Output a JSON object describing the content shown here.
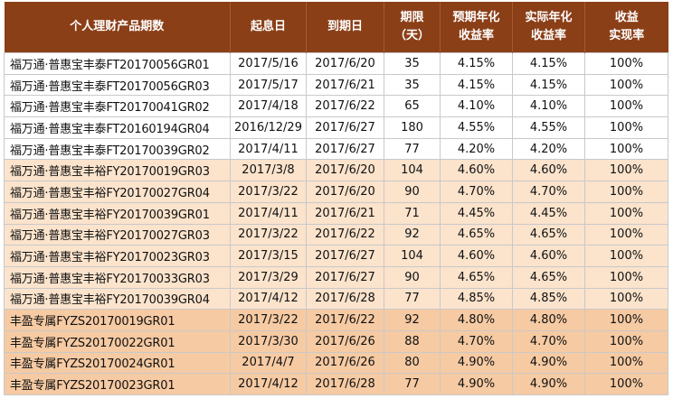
{
  "headers": {
    "product": "个人理财产品期数",
    "start": "起息日",
    "end": "到期日",
    "term": [
      "期限",
      "（天）"
    ],
    "expected": [
      "预期年化",
      "收益率"
    ],
    "actual": [
      "实际年化",
      "收益率"
    ],
    "realization": [
      "收益",
      "实现率"
    ]
  },
  "rows": [
    {
      "group": 0,
      "name": "福万通·普惠宝丰泰FT20170056GR01",
      "start": "2017/5/16",
      "end": "2017/6/20",
      "days": "35",
      "expected": "4.15%",
      "actual": "4.15%",
      "rate": "100%"
    },
    {
      "group": 0,
      "name": "福万通·普惠宝丰泰FT20170056GR03",
      "start": "2017/5/17",
      "end": "2017/6/21",
      "days": "35",
      "expected": "4.15%",
      "actual": "4.15%",
      "rate": "100%"
    },
    {
      "group": 0,
      "name": "福万通·普惠宝丰泰FT20170041GR02",
      "start": "2017/4/18",
      "end": "2017/6/22",
      "days": "65",
      "expected": "4.10%",
      "actual": "4.10%",
      "rate": "100%"
    },
    {
      "group": 0,
      "name": "福万通·普惠宝丰泰FT20160194GR04",
      "start": "2016/12/29",
      "end": "2017/6/27",
      "days": "180",
      "expected": "4.55%",
      "actual": "4.55%",
      "rate": "100%"
    },
    {
      "group": 0,
      "name": "福万通·普惠宝丰泰FT20170039GR02",
      "start": "2017/4/11",
      "end": "2017/6/27",
      "days": "77",
      "expected": "4.20%",
      "actual": "4.20%",
      "rate": "100%"
    },
    {
      "group": 1,
      "name": "福万通·普惠宝丰裕FY20170019GR03",
      "start": "2017/3/8",
      "end": "2017/6/20",
      "days": "104",
      "expected": "4.60%",
      "actual": "4.60%",
      "rate": "100%"
    },
    {
      "group": 1,
      "name": "福万通·普惠宝丰裕FY20170027GR04",
      "start": "2017/3/22",
      "end": "2017/6/20",
      "days": "90",
      "expected": "4.70%",
      "actual": "4.70%",
      "rate": "100%"
    },
    {
      "group": 1,
      "name": "福万通·普惠宝丰裕FY20170039GR01",
      "start": "2017/4/11",
      "end": "2017/6/21",
      "days": "71",
      "expected": "4.45%",
      "actual": "4.45%",
      "rate": "100%"
    },
    {
      "group": 1,
      "name": "福万通·普惠宝丰裕FY20170027GR03",
      "start": "2017/3/22",
      "end": "2017/6/22",
      "days": "92",
      "expected": "4.65%",
      "actual": "4.65%",
      "rate": "100%"
    },
    {
      "group": 1,
      "name": "福万通·普惠宝丰裕FY20170023GR03",
      "start": "2017/3/15",
      "end": "2017/6/27",
      "days": "104",
      "expected": "4.60%",
      "actual": "4.60%",
      "rate": "100%"
    },
    {
      "group": 1,
      "name": "福万通·普惠宝丰裕FY20170033GR03",
      "start": "2017/3/29",
      "end": "2017/6/27",
      "days": "90",
      "expected": "4.65%",
      "actual": "4.65%",
      "rate": "100%"
    },
    {
      "group": 1,
      "name": "福万通·普惠宝丰裕FY20170039GR04",
      "start": "2017/4/12",
      "end": "2017/6/28",
      "days": "77",
      "expected": "4.85%",
      "actual": "4.85%",
      "rate": "100%"
    },
    {
      "group": 2,
      "name": "丰盈专属FYZS20170019GR01",
      "start": "2017/3/22",
      "end": "2017/6/22",
      "days": "92",
      "expected": "4.80%",
      "actual": "4.80%",
      "rate": "100%"
    },
    {
      "group": 2,
      "name": "丰盈专属FYZS20170022GR01",
      "start": "2017/3/30",
      "end": "2017/6/26",
      "days": "88",
      "expected": "4.70%",
      "actual": "4.70%",
      "rate": "100%"
    },
    {
      "group": 2,
      "name": "丰盈专属FYZS20170024GR01",
      "start": "2017/4/7",
      "end": "2017/6/26",
      "days": "80",
      "expected": "4.90%",
      "actual": "4.90%",
      "rate": "100%"
    },
    {
      "group": 2,
      "name": "丰盈专属FYZS20170023GR01",
      "start": "2017/4/12",
      "end": "2017/6/28",
      "days": "77",
      "expected": "4.90%",
      "actual": "4.90%",
      "rate": "100%"
    }
  ]
}
